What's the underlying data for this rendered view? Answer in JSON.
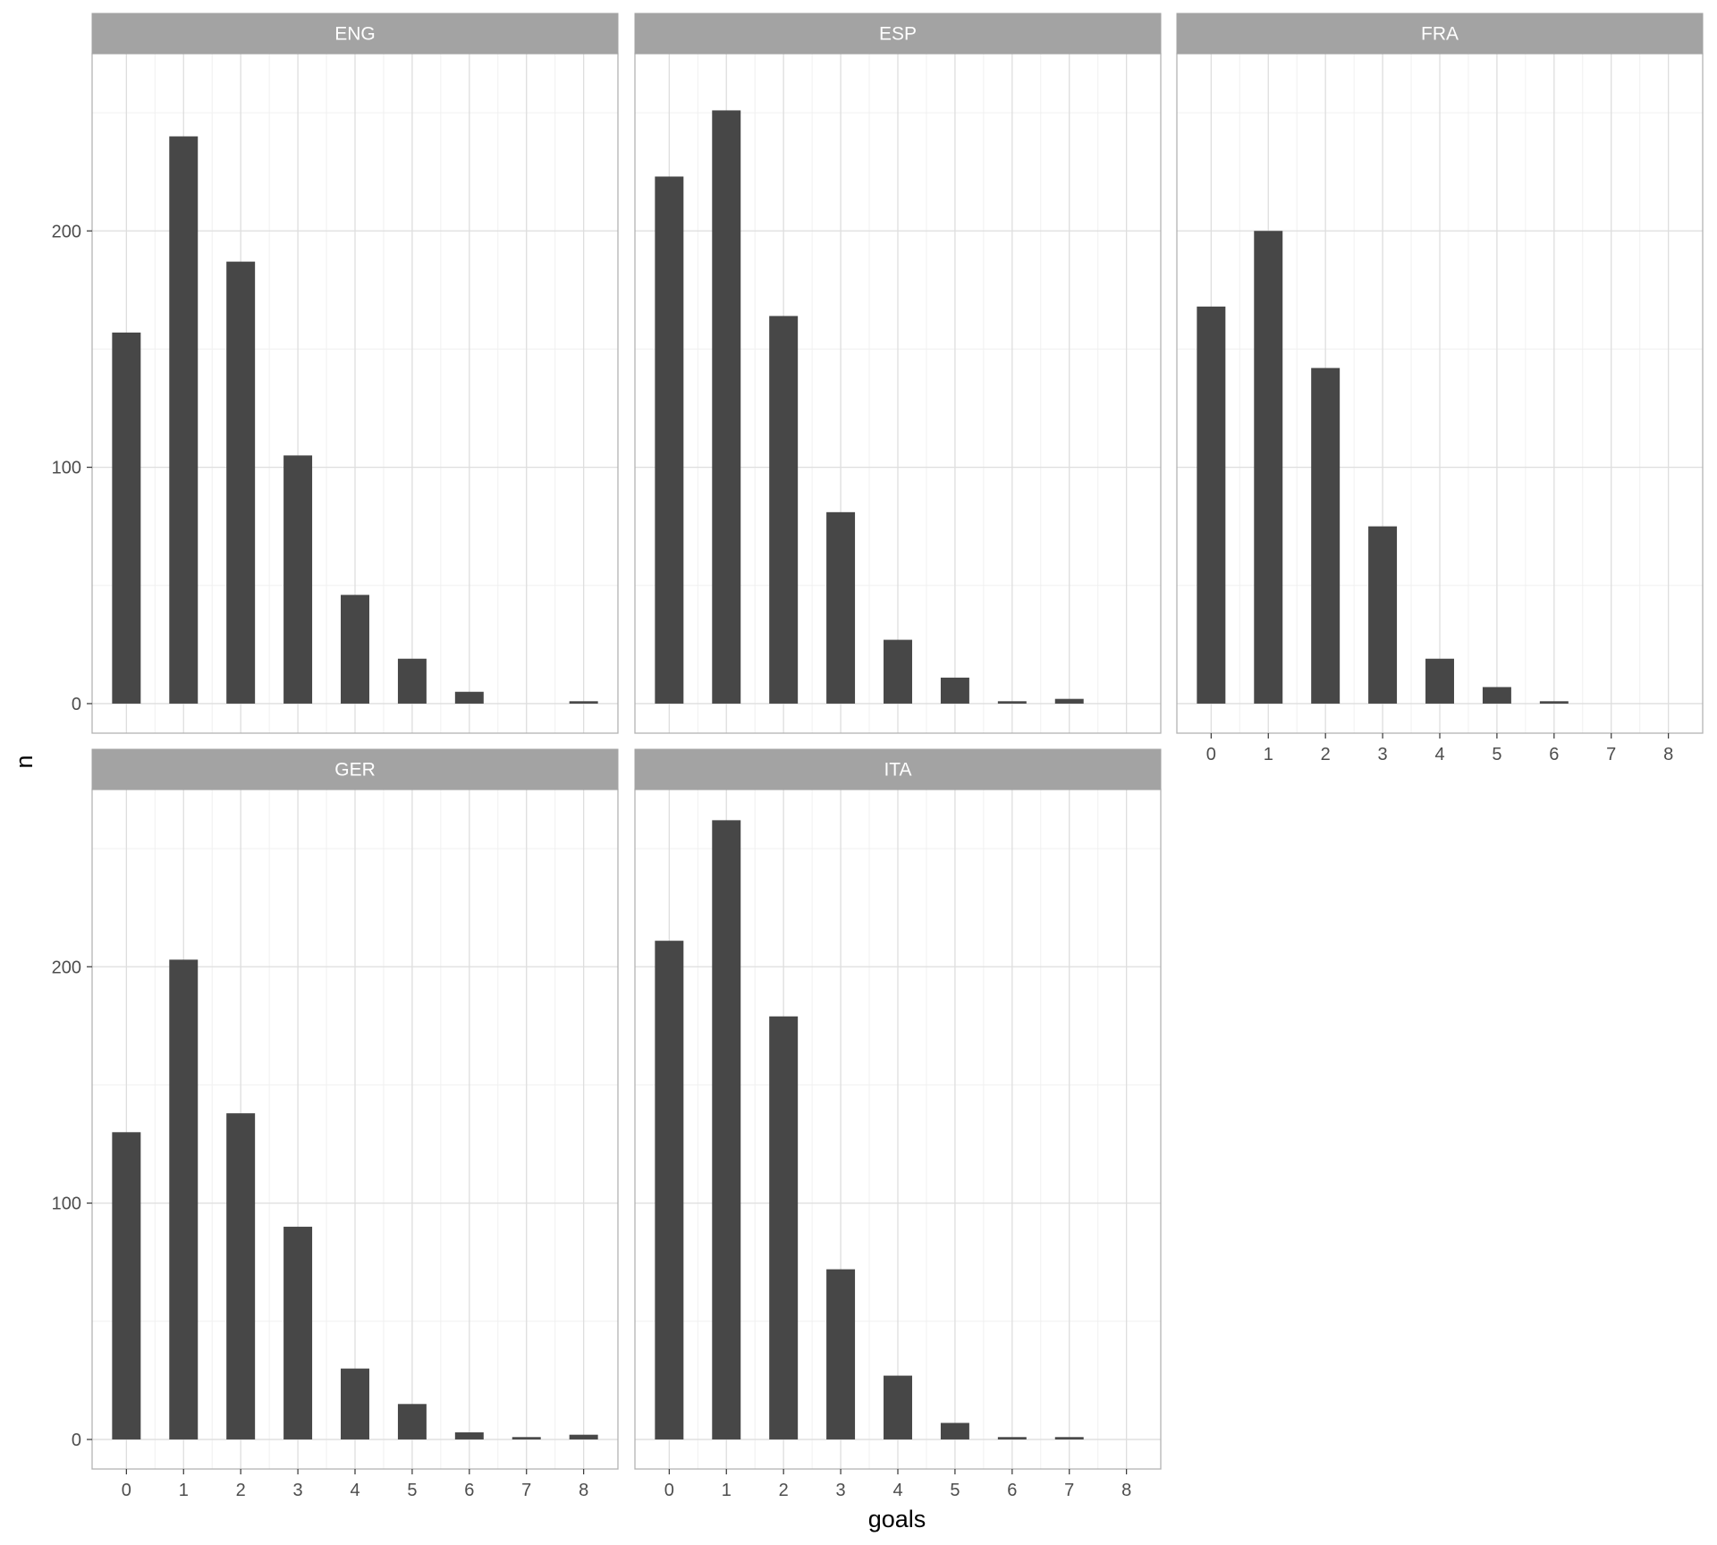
{
  "chart_data": {
    "type": "bar",
    "layout": "faceted",
    "xlabel": "goals",
    "ylabel": "n",
    "x_ticks": [
      "0",
      "1",
      "2",
      "3",
      "4",
      "5",
      "6",
      "7",
      "8"
    ],
    "y_ticks": [
      "0",
      "100",
      "200"
    ],
    "xlim": [
      -0.6,
      8.6
    ],
    "ylim": [
      -12.5,
      275
    ],
    "grid": true,
    "bar_color": "#474747",
    "strip_color": "#a3a3a3",
    "facets": [
      {
        "name": "ENG",
        "x": [
          0,
          1,
          2,
          3,
          4,
          5,
          6,
          8
        ],
        "values": [
          157,
          240,
          187,
          105,
          46,
          19,
          5,
          1
        ]
      },
      {
        "name": "ESP",
        "x": [
          0,
          1,
          2,
          3,
          4,
          5,
          6,
          7
        ],
        "values": [
          223,
          251,
          164,
          81,
          27,
          11,
          1,
          2
        ]
      },
      {
        "name": "FRA",
        "x": [
          0,
          1,
          2,
          3,
          4,
          5,
          6
        ],
        "values": [
          168,
          200,
          142,
          75,
          19,
          7,
          1
        ]
      },
      {
        "name": "GER",
        "x": [
          0,
          1,
          2,
          3,
          4,
          5,
          6,
          7,
          8
        ],
        "values": [
          130,
          203,
          138,
          90,
          30,
          15,
          3,
          1,
          2
        ]
      },
      {
        "name": "ITA",
        "x": [
          0,
          1,
          2,
          3,
          4,
          5,
          6,
          7
        ],
        "values": [
          211,
          262,
          179,
          72,
          27,
          7,
          1,
          1
        ]
      }
    ]
  }
}
